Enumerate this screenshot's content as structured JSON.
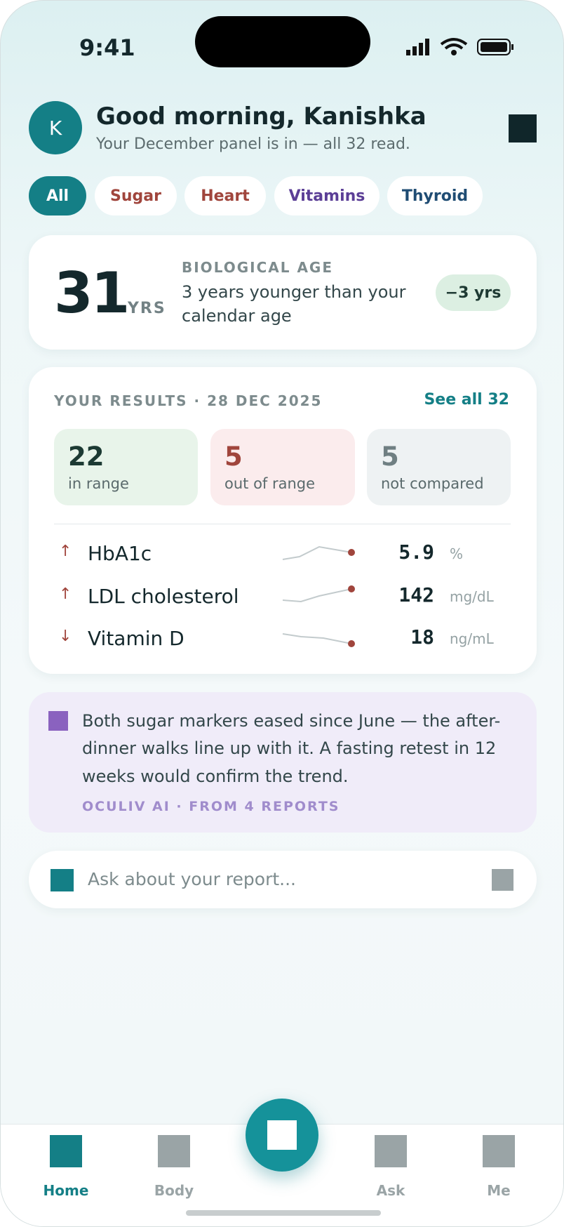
{
  "status_bar": {
    "time": "9:41"
  },
  "header": {
    "avatar": "K",
    "title": "Good morning, Kanishka",
    "subtitle": "Your December panel is in — all 32 read."
  },
  "filters": [
    "All",
    "Sugar",
    "Heart",
    "Vitamins",
    "Thyroid"
  ],
  "bio_age": {
    "value": "31",
    "unit": "YRS",
    "label": "BIOLOGICAL AGE",
    "text_line1": "3 years younger than your",
    "text_line2": "calendar age",
    "badge": "−3 yrs"
  },
  "results": {
    "heading": "YOUR RESULTS · 28 DEC 2025",
    "link": "See all 32",
    "summary": [
      {
        "count": "22",
        "label": "in range"
      },
      {
        "count": "5",
        "label": "out of range"
      },
      {
        "count": "5",
        "label": "not compared"
      }
    ],
    "rows": [
      {
        "arrow": "↑",
        "name": "HbA1c",
        "value": "5.9",
        "unit": "%"
      },
      {
        "arrow": "↑",
        "name": "LDL cholesterol",
        "value": "142",
        "unit": "mg/dL"
      },
      {
        "arrow": "↓",
        "name": "Vitamin D",
        "value": "18",
        "unit": "ng/mL"
      }
    ]
  },
  "insight": {
    "line1": "Both sugar markers eased since June — the after-",
    "line2": "dinner walks line up with it. A fasting retest in 12",
    "line3": "weeks would confirm the trend.",
    "source": "OCULIV AI · FROM 4 REPORTS"
  },
  "ask": {
    "placeholder": "Ask about your report..."
  },
  "nav": [
    "Home",
    "Body",
    "Ask",
    "Me"
  ]
}
